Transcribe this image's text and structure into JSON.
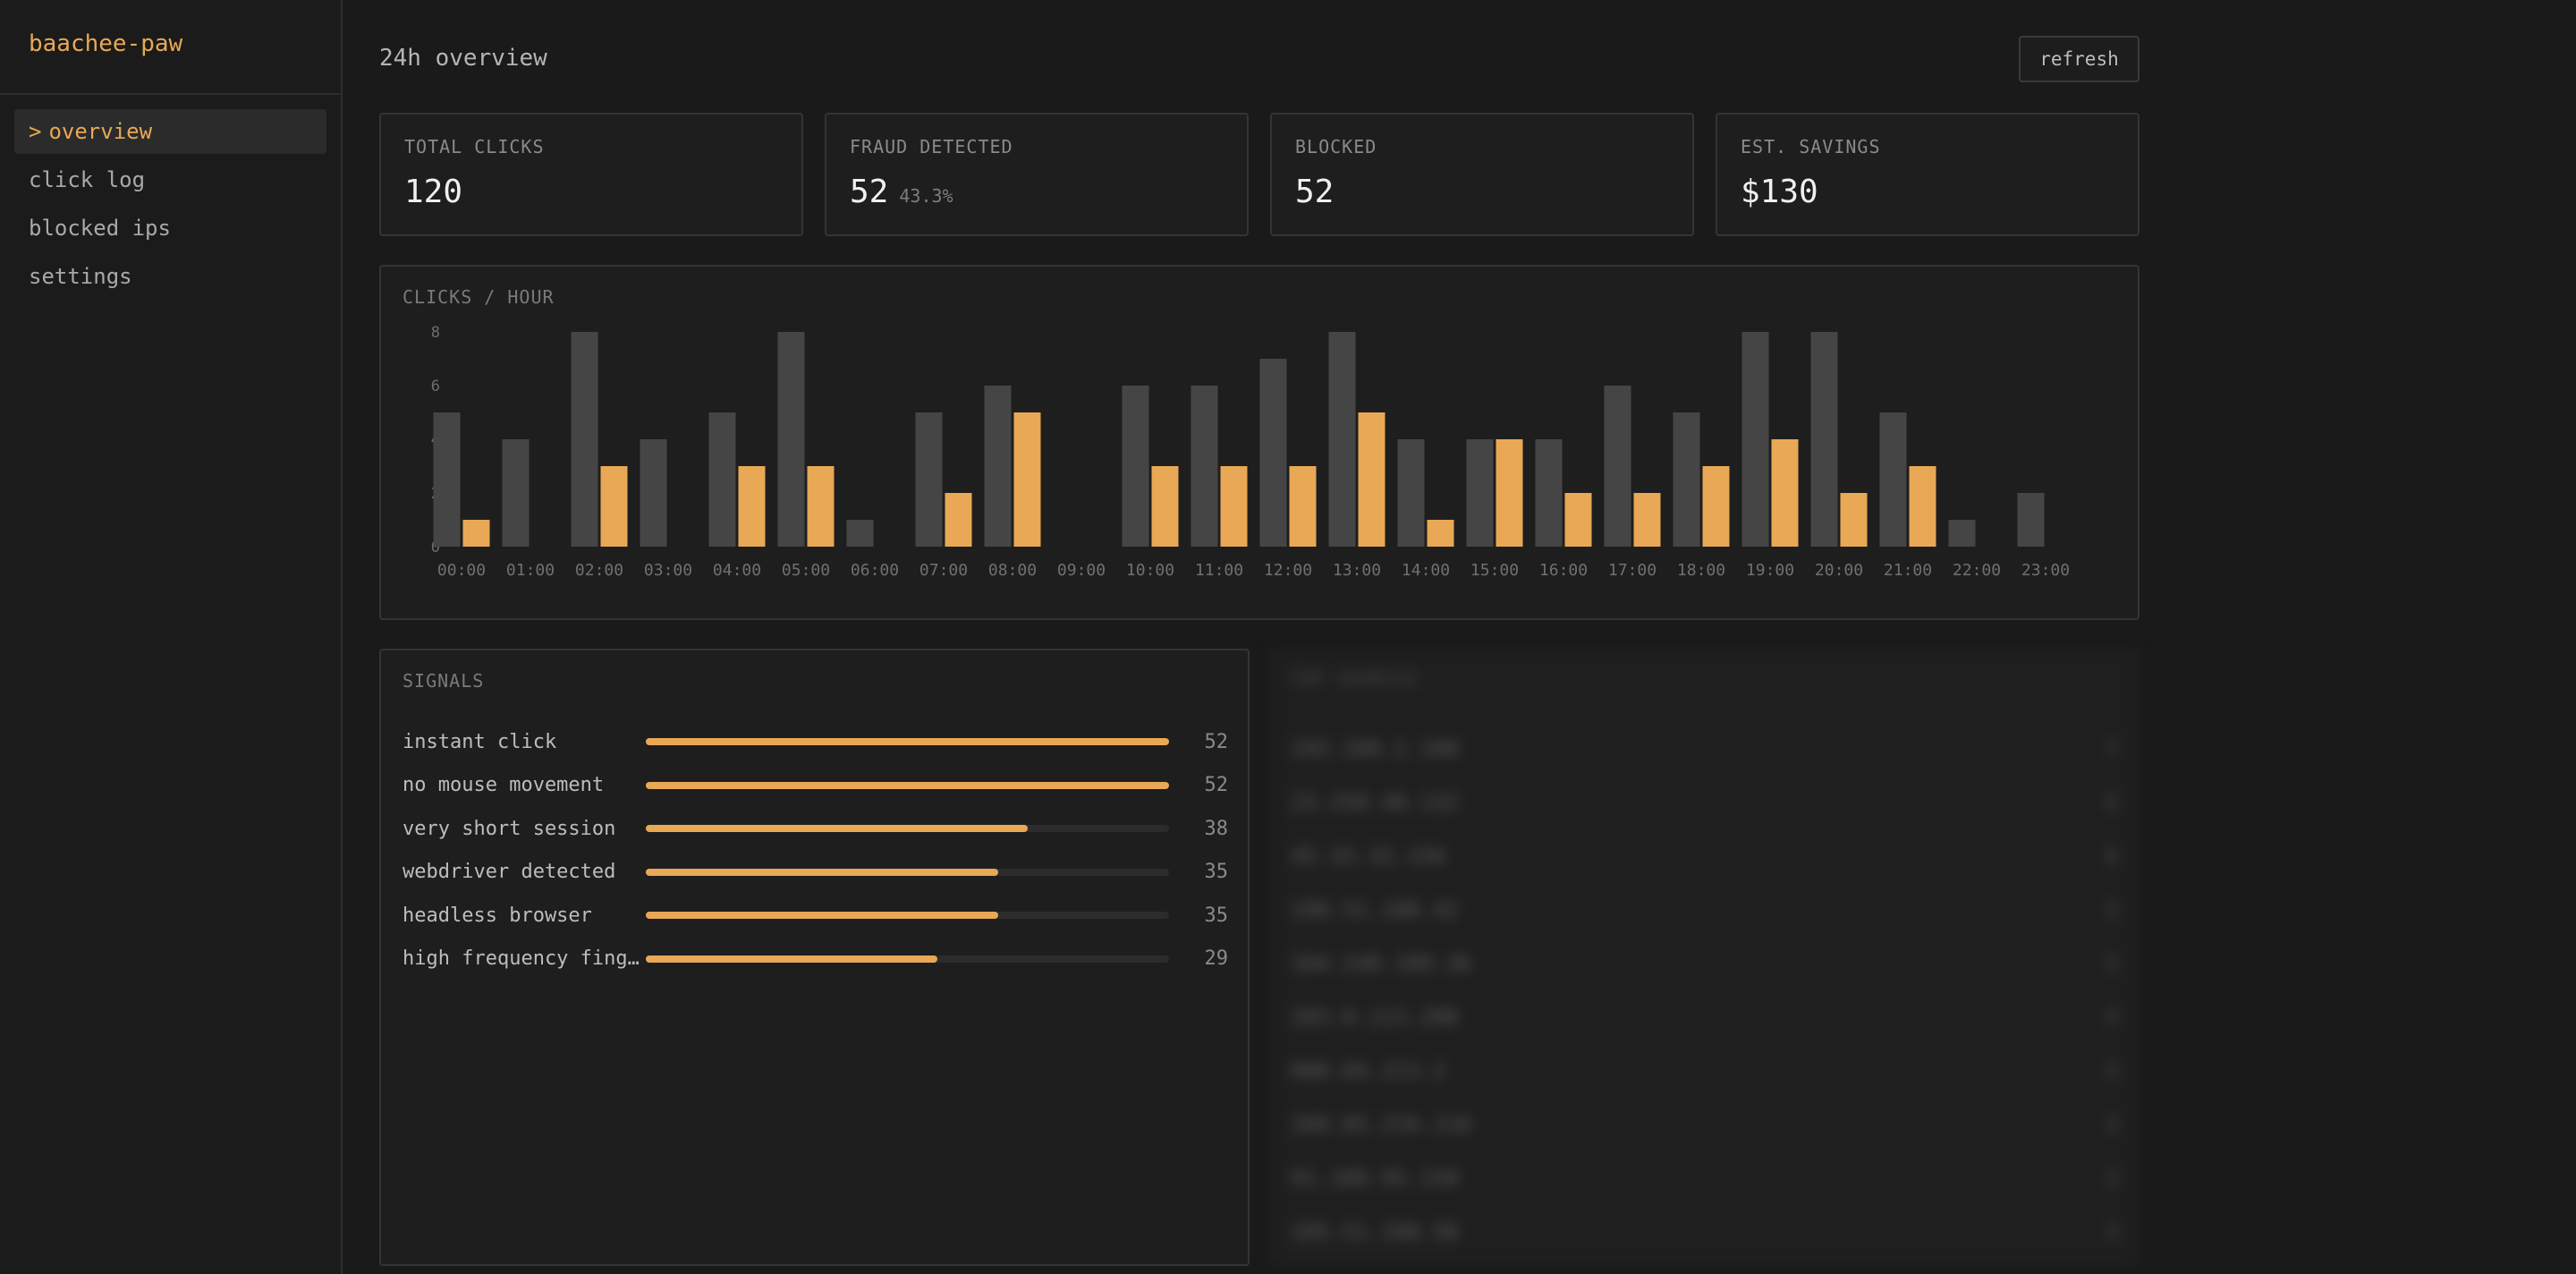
{
  "app": {
    "name": "baachee-paw"
  },
  "sidebar": {
    "items": [
      {
        "caret": ">",
        "label": "overview",
        "active": true
      },
      {
        "label": "click log"
      },
      {
        "label": "blocked ips"
      },
      {
        "label": "settings"
      }
    ]
  },
  "header": {
    "title": "24h overview",
    "refresh_label": "refresh"
  },
  "stats": [
    {
      "label": "TOTAL CLICKS",
      "value": "120",
      "sub": ""
    },
    {
      "label": "FRAUD DETECTED",
      "value": "52",
      "sub": "43.3%"
    },
    {
      "label": "BLOCKED",
      "value": "52",
      "sub": ""
    },
    {
      "label": "EST. SAVINGS",
      "value": "$130",
      "sub": ""
    }
  ],
  "chart_data": {
    "type": "bar",
    "title": "CLICKS / HOUR",
    "categories": [
      "00:00",
      "01:00",
      "02:00",
      "03:00",
      "04:00",
      "05:00",
      "06:00",
      "07:00",
      "08:00",
      "09:00",
      "10:00",
      "11:00",
      "12:00",
      "13:00",
      "14:00",
      "15:00",
      "16:00",
      "17:00",
      "18:00",
      "19:00",
      "20:00",
      "21:00",
      "22:00",
      "23:00"
    ],
    "series": [
      {
        "values": [
          5,
          4,
          8,
          4,
          5,
          8,
          1,
          5,
          6,
          0,
          6,
          6,
          7,
          8,
          4,
          4,
          4,
          6,
          5,
          8,
          8,
          5,
          1,
          2
        ]
      },
      {
        "values": [
          1,
          0,
          3,
          0,
          3,
          3,
          0,
          2,
          5,
          0,
          3,
          3,
          3,
          5,
          1,
          4,
          2,
          2,
          3,
          4,
          2,
          3,
          0,
          0
        ]
      }
    ],
    "colors": [
      "#454545",
      "#e8a855"
    ],
    "yticks": [
      0,
      2,
      4,
      6,
      8
    ],
    "ylim": [
      0,
      8
    ],
    "grid": false,
    "legend": "none"
  },
  "signals": {
    "title": "SIGNALS",
    "max": 52,
    "items": [
      {
        "label": "instant click",
        "count": 52
      },
      {
        "label": "no mouse movement",
        "count": 52
      },
      {
        "label": "very short session",
        "count": 38
      },
      {
        "label": "webdriver detected",
        "count": 35
      },
      {
        "label": "headless browser",
        "count": 35
      },
      {
        "label": "high frequency fingerprint",
        "count": 29
      }
    ]
  },
  "top_sources": {
    "title": "TOP SOURCES",
    "items": [
      {
        "ip": "192.168.1.100",
        "count": "7"
      },
      {
        "ip": "23.250.48.132",
        "count": "6"
      },
      {
        "ip": "45.33.32.156",
        "count": "6"
      },
      {
        "ip": "198.51.100.42",
        "count": "5"
      },
      {
        "ip": "104.248.189.36",
        "count": "5"
      },
      {
        "ip": "203.0.113.200",
        "count": "4"
      },
      {
        "ip": "080.84.213.2",
        "count": "4"
      },
      {
        "ip": "209.85.234.210",
        "count": "4"
      },
      {
        "ip": "91.189.95.150",
        "count": "3"
      },
      {
        "ip": "185.51.188.50",
        "count": "3"
      }
    ]
  }
}
